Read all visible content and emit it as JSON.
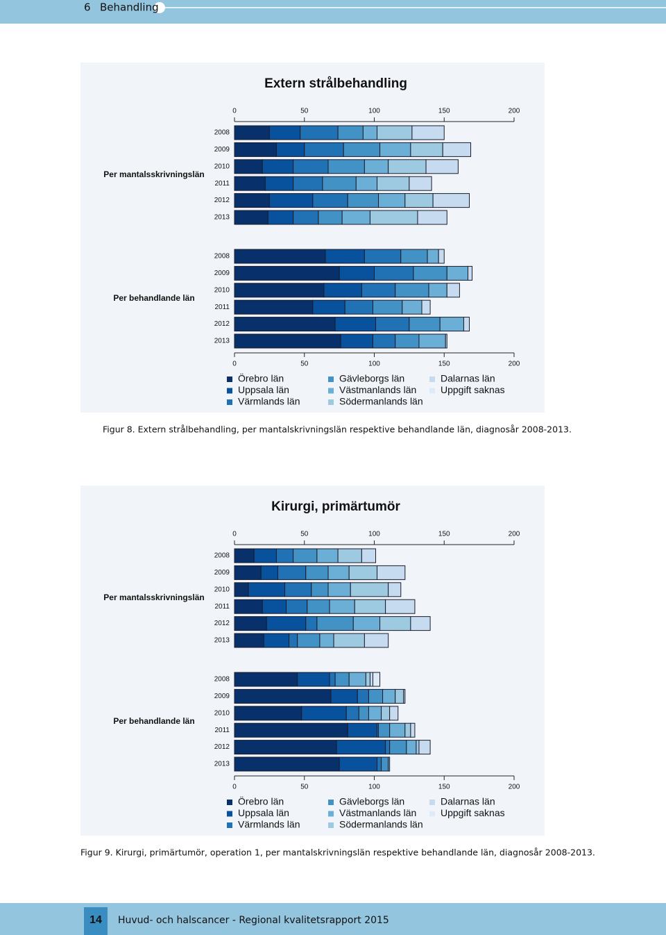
{
  "header": {
    "section_number": "6",
    "section_title": "Behandling"
  },
  "chart_data": [
    {
      "type": "stacked-bar-h",
      "title": "Extern strålbehandling",
      "caption": "Figur 8. Extern strålbehandling, per mantalskrivningslän respektive behandlande län, diagnosår 2008-2013.",
      "xlim": [
        0,
        200
      ],
      "xticks": [
        0,
        50,
        100,
        150,
        200
      ],
      "series": [
        {
          "name": "Örebro län",
          "color": "#08306b"
        },
        {
          "name": "Uppsala län",
          "color": "#08519c"
        },
        {
          "name": "Värmlands län",
          "color": "#2171b5"
        },
        {
          "name": "Gävleborgs län",
          "color": "#4292c6"
        },
        {
          "name": "Västmanlands län",
          "color": "#6baed6"
        },
        {
          "name": "Södermanlands län",
          "color": "#9ecae1"
        },
        {
          "name": "Dalarnas län",
          "color": "#c6dbef"
        },
        {
          "name": "Uppgift saknas",
          "color": "#deebf7"
        }
      ],
      "panels": [
        {
          "label": "Per mantalsskrivningslän",
          "categories": [
            "2008",
            "2009",
            "2010",
            "2011",
            "2012",
            "2013"
          ],
          "values": [
            [
              25,
              30,
              20,
              22,
              25,
              24
            ],
            [
              22,
              20,
              22,
              20,
              31,
              18
            ],
            [
              27,
              28,
              25,
              21,
              25,
              18
            ],
            [
              18,
              26,
              26,
              24,
              22,
              17
            ],
            [
              10,
              22,
              17,
              15,
              19,
              20
            ],
            [
              25,
              23,
              27,
              23,
              20,
              34
            ],
            [
              23,
              20,
              23,
              16,
              26,
              21
            ],
            [
              0,
              0,
              0,
              0,
              0,
              0
            ]
          ]
        },
        {
          "label": "Per behandlande län",
          "categories": [
            "2008",
            "2009",
            "2010",
            "2011",
            "2012",
            "2013"
          ],
          "values": [
            [
              65,
              75,
              64,
              56,
              72,
              76
            ],
            [
              28,
              25,
              27,
              23,
              29,
              23
            ],
            [
              26,
              28,
              24,
              20,
              24,
              16
            ],
            [
              19,
              24,
              24,
              21,
              22,
              17
            ],
            [
              8,
              15,
              13,
              14,
              17,
              19
            ],
            [
              0,
              0,
              0,
              0,
              0,
              0
            ],
            [
              4,
              3,
              9,
              6,
              4,
              1
            ],
            [
              0,
              0,
              0,
              0,
              0,
              0
            ]
          ]
        }
      ]
    },
    {
      "type": "stacked-bar-h",
      "title": "Kirurgi, primärtumör",
      "caption": "Figur 9. Kirurgi, primärtumör, operation 1, per mantalskrivningslän respektive behandlande län, diagnosår 2008-2013.",
      "xlim": [
        0,
        200
      ],
      "xticks": [
        0,
        50,
        100,
        150,
        200
      ],
      "series": [
        {
          "name": "Örebro län",
          "color": "#08306b"
        },
        {
          "name": "Uppsala län",
          "color": "#08519c"
        },
        {
          "name": "Värmlands län",
          "color": "#2171b5"
        },
        {
          "name": "Gävleborgs län",
          "color": "#4292c6"
        },
        {
          "name": "Västmanlands län",
          "color": "#6baed6"
        },
        {
          "name": "Södermanlands län",
          "color": "#9ecae1"
        },
        {
          "name": "Dalarnas län",
          "color": "#c6dbef"
        },
        {
          "name": "Uppgift saknas",
          "color": "#deebf7"
        }
      ],
      "panels": [
        {
          "label": "Per mantalsskrivningslän",
          "categories": [
            "2008",
            "2009",
            "2010",
            "2011",
            "2012",
            "2013"
          ],
          "values": [
            [
              14,
              19,
              10,
              20,
              23,
              21
            ],
            [
              16,
              12,
              26,
              17,
              28,
              18
            ],
            [
              12,
              20,
              19,
              15,
              8,
              6
            ],
            [
              17,
              16,
              12,
              16,
              26,
              16
            ],
            [
              15,
              15,
              16,
              18,
              19,
              10
            ],
            [
              17,
              20,
              27,
              22,
              22,
              22
            ],
            [
              10,
              20,
              9,
              21,
              14,
              17
            ],
            [
              0,
              0,
              0,
              0,
              0,
              0
            ]
          ]
        },
        {
          "label": "Per behandlande län",
          "categories": [
            "2008",
            "2009",
            "2010",
            "2011",
            "2012",
            "2013"
          ],
          "values": [
            [
              45,
              69,
              48,
              81,
              73,
              75
            ],
            [
              23,
              19,
              32,
              21,
              35,
              27
            ],
            [
              4,
              8,
              9,
              1,
              3,
              3
            ],
            [
              10,
              10,
              7,
              8,
              12,
              5
            ],
            [
              12,
              9,
              9,
              11,
              7,
              1
            ],
            [
              3,
              6,
              6,
              4,
              2,
              0
            ],
            [
              2,
              1,
              6,
              3,
              8,
              0
            ],
            [
              5,
              0,
              0,
              0,
              0,
              0
            ]
          ]
        }
      ]
    }
  ],
  "footer": {
    "page_number": "14",
    "text": "Huvud- och halscancer - Regional kvalitetsrapport 2015"
  }
}
